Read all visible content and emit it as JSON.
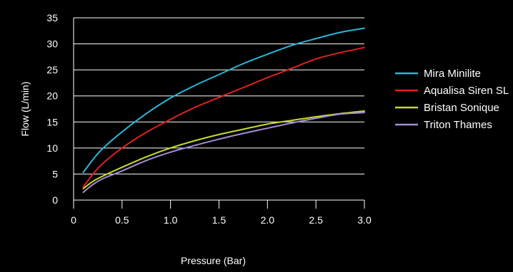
{
  "chart_data": {
    "type": "line",
    "title": "",
    "xlabel": "Pressure (Bar)",
    "ylabel": "Flow (L/min)",
    "xlim": [
      0,
      3.0
    ],
    "ylim": [
      0,
      35
    ],
    "x_ticks": [
      "0",
      "0.5",
      "1.0",
      "1.5",
      "2.0",
      "2.5",
      "3.0"
    ],
    "y_ticks": [
      "0",
      "5",
      "10",
      "15",
      "20",
      "25",
      "30",
      "35"
    ],
    "grid": "horizontal",
    "legend_position": "right",
    "series": [
      {
        "name": "Mira Minilite",
        "color": "#29b6d8",
        "x": [
          0.1,
          0.2,
          0.3,
          0.5,
          0.75,
          1.0,
          1.25,
          1.5,
          1.75,
          2.0,
          2.25,
          2.5,
          2.75,
          3.0
        ],
        "y": [
          5.3,
          7.8,
          9.9,
          13.1,
          16.6,
          19.6,
          22.0,
          24.1,
          26.2,
          28.0,
          29.7,
          31.0,
          32.2,
          33.0
        ]
      },
      {
        "name": "Aqualisa Siren SL",
        "color": "#e02020",
        "x": [
          0.1,
          0.2,
          0.3,
          0.5,
          0.75,
          1.0,
          1.25,
          1.5,
          1.75,
          2.0,
          2.25,
          2.5,
          2.75,
          3.0
        ],
        "y": [
          2.5,
          5.0,
          7.0,
          10.0,
          13.0,
          15.5,
          17.8,
          19.7,
          21.6,
          23.5,
          25.3,
          27.1,
          28.3,
          29.3
        ]
      },
      {
        "name": "Bristan Sonique",
        "color": "#c8dc28",
        "x": [
          0.1,
          0.2,
          0.3,
          0.5,
          0.75,
          1.0,
          1.25,
          1.5,
          1.75,
          2.0,
          2.25,
          2.5,
          2.75,
          3.0
        ],
        "y": [
          2.2,
          3.6,
          4.6,
          6.3,
          8.3,
          10.0,
          11.4,
          12.6,
          13.6,
          14.6,
          15.3,
          16.0,
          16.6,
          17.1
        ]
      },
      {
        "name": "Triton Thames",
        "color": "#a78bd6",
        "x": [
          0.1,
          0.2,
          0.3,
          0.5,
          0.75,
          1.0,
          1.25,
          1.5,
          1.75,
          2.0,
          2.25,
          2.5,
          2.75,
          3.0
        ],
        "y": [
          1.5,
          3.0,
          4.1,
          5.6,
          7.6,
          9.2,
          10.5,
          11.7,
          12.8,
          13.8,
          14.8,
          15.7,
          16.5,
          16.8
        ]
      }
    ]
  }
}
